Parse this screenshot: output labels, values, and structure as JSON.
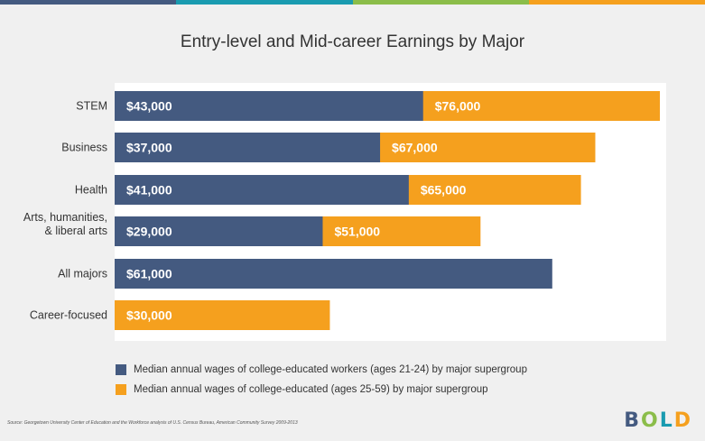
{
  "title": "Entry-level and Mid-career Earnings by Major",
  "colors": {
    "entry": "#445a80",
    "mid": "#f5a01e",
    "topbar": [
      "#445a80",
      "#1a9bb0",
      "#8bbd4a",
      "#f5a01e"
    ],
    "plot_bg": "#ffffff",
    "page_bg": "#f0f0f0"
  },
  "chart_data": {
    "type": "bar",
    "orientation": "horizontal",
    "title": "Entry-level and Mid-career Earnings by Major",
    "categories": [
      "STEM",
      "Business",
      "Health",
      "Arts, humanities, & liberal arts",
      "All majors",
      "Career-focused"
    ],
    "category_lines": [
      [
        "STEM"
      ],
      [
        "Business"
      ],
      [
        "Health"
      ],
      [
        "Arts, humanities,",
        "& liberal arts"
      ],
      [
        "All majors"
      ],
      [
        "Career-focused"
      ]
    ],
    "series": [
      {
        "name": "Median annual wages of college-educated workers (ages 21-24) by major supergroup",
        "values": [
          43000,
          37000,
          41000,
          29000,
          null,
          null
        ],
        "labels": [
          "$43,000",
          "$37,000",
          "$41,000",
          "$29,000",
          "",
          ""
        ]
      },
      {
        "name": "Median annual wages of college-educated (ages 25-59) by major supergroup",
        "values": [
          76000,
          67000,
          65000,
          51000,
          null,
          30000
        ],
        "labels": [
          "$76,000",
          "$67,000",
          "$65,000",
          "$51,000",
          "",
          "$30,000"
        ]
      }
    ],
    "all_majors": {
      "value": 61000,
      "label": "$61,000",
      "series_index": 0
    },
    "xlim": [
      0,
      76000
    ],
    "grid": false,
    "legend_position": "bottom"
  },
  "legend": [
    "Median annual wages of college-educated workers (ages 21-24) by major supergroup",
    "Median annual wages of college-educated (ages 25-59) by major supergroup"
  ],
  "source": "Source: Georgetown University Center of Education and the Workforce analysis of U.S. Census Bureau, American Community Survey 2009-2013",
  "logo": {
    "letters": [
      "B",
      "O",
      "L",
      "D"
    ],
    "colors": [
      "#445a80",
      "#8bbd4a",
      "#1a9bb0",
      "#f5a01e"
    ]
  }
}
